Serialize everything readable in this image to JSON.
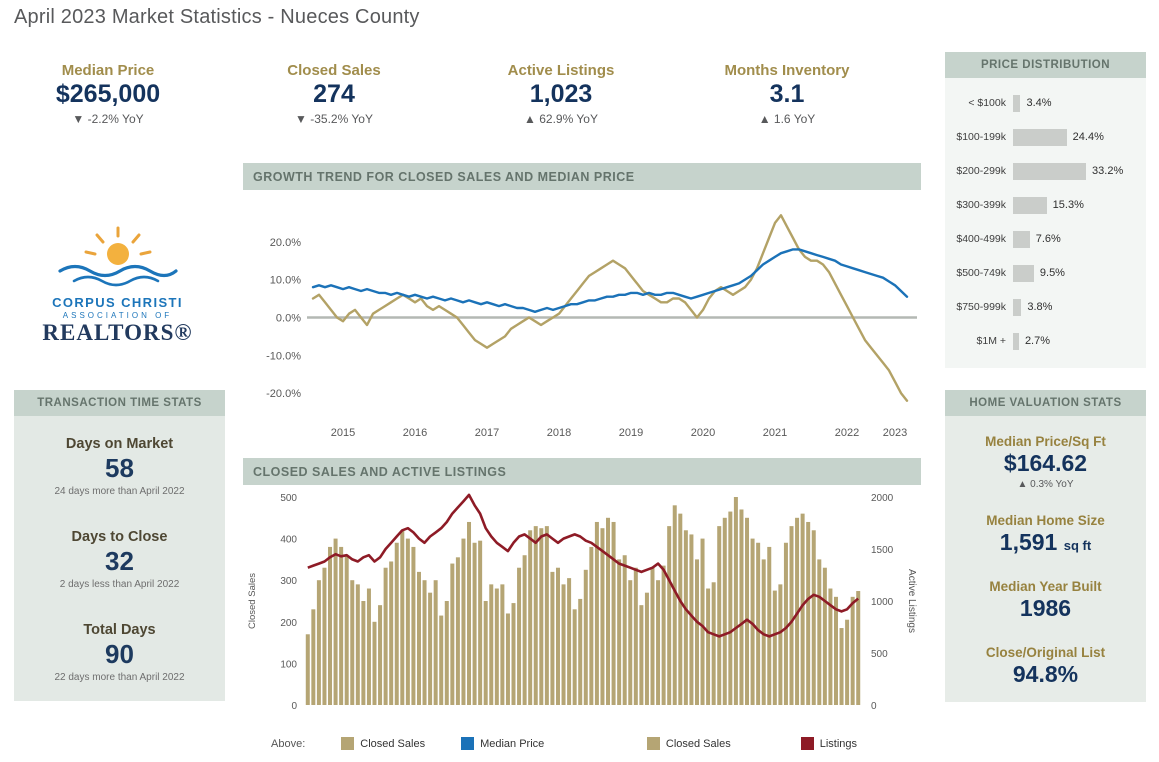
{
  "page": {
    "title": "April 2023 Market Statistics - Nueces County"
  },
  "kpis": [
    {
      "label": "Median Price",
      "value": "$265,000",
      "delta": "▼  -2.2% YoY",
      "direction": "down"
    },
    {
      "label": "Closed Sales",
      "value": "274",
      "delta": "▼  -35.2% YoY",
      "direction": "down"
    },
    {
      "label": "Active Listings",
      "value": "1,023",
      "delta": "▲  62.9% YoY",
      "direction": "up"
    },
    {
      "label": "Months Inventory",
      "value": "3.1",
      "delta": "▲  1.6 YoY",
      "direction": "up"
    }
  ],
  "logo": {
    "line1": "CORPUS CHRISTI",
    "line2": "ASSOCIATION OF",
    "line3": "REALTORS®"
  },
  "panels": {
    "transaction": {
      "header": "TRANSACTION TIME STATS",
      "stats": [
        {
          "label": "Days on Market",
          "value": "58",
          "note": "24 days more than April 2022"
        },
        {
          "label": "Days to Close",
          "value": "32",
          "note": "2 days less than April 2022"
        },
        {
          "label": "Total Days",
          "value": "90",
          "note": "22 days more than April 2022"
        }
      ]
    },
    "price_distribution": {
      "header": "PRICE DISTRIBUTION"
    },
    "valuation": {
      "header": "HOME VALUATION STATS",
      "stats": [
        {
          "label": "Median Price/Sq Ft",
          "value": "$164.62",
          "note": "▲  0.3% YoY"
        },
        {
          "label": "Median Home Size",
          "value": "1,591",
          "suffix": "sq ft"
        },
        {
          "label": "Median Year Built",
          "value": "1986"
        },
        {
          "label": "Close/Original List",
          "value": "94.8%"
        }
      ]
    }
  },
  "section_headers": {
    "growth": "GROWTH TREND FOR CLOSED SALES AND MEDIAN PRICE",
    "sales": "CLOSED SALES AND ACTIVE LISTINGS"
  },
  "legend": {
    "above_label": "Above:",
    "items": [
      {
        "label": "Closed Sales",
        "color": "#b5a574"
      },
      {
        "label": "Median Price",
        "color": "#1b72b8"
      },
      {
        "label": "Closed Sales",
        "color": "#b5a574"
      },
      {
        "label": "Listings",
        "color": "#8e1b26"
      }
    ]
  },
  "chart_data": [
    {
      "type": "line",
      "title": "GROWTH TREND FOR CLOSED SALES AND MEDIAN PRICE",
      "x_unit": "month",
      "x_range": "Jan 2015 - Apr 2023",
      "x_labels": [
        "2015",
        "2016",
        "2017",
        "2018",
        "2019",
        "2020",
        "2021",
        "2022",
        "2023"
      ],
      "ylim": [
        -25,
        30
      ],
      "yticks": [
        -20,
        -10,
        0,
        10,
        20
      ],
      "ytick_format": "percent_one_decimal",
      "grid": "zero-line-only",
      "series": [
        {
          "name": "Closed Sales",
          "color": "#b3a266",
          "values": [
            5,
            6,
            4,
            2,
            0,
            -1,
            1,
            2,
            0,
            -2,
            1,
            2,
            3,
            4,
            5,
            6,
            5,
            4,
            5,
            3,
            2,
            3,
            2,
            1,
            0,
            -2,
            -4,
            -6,
            -7,
            -8,
            -7,
            -6,
            -5,
            -3,
            -2,
            -1,
            0,
            -1,
            -2,
            -1,
            0,
            1,
            3,
            5,
            7,
            9,
            11,
            12,
            13,
            14,
            15,
            14,
            13,
            11,
            9,
            7,
            6,
            5,
            4,
            4,
            5,
            5,
            4,
            2,
            0,
            2,
            5,
            7,
            8,
            7,
            6,
            7,
            8,
            10,
            13,
            17,
            21,
            25,
            27,
            24,
            21,
            18,
            16,
            15,
            15,
            14,
            12,
            9,
            6,
            3,
            0,
            -3,
            -6,
            -8,
            -10,
            -12,
            -14,
            -17,
            -20,
            -22
          ]
        },
        {
          "name": "Median Price",
          "color": "#1b72b8",
          "values": [
            8,
            8.5,
            8,
            8.5,
            8,
            7.5,
            8,
            7.5,
            7,
            7.5,
            7,
            6.5,
            6.5,
            6,
            6.5,
            6,
            5.5,
            6,
            5.5,
            5,
            5.5,
            5,
            4.5,
            5,
            4.5,
            4,
            4.5,
            4,
            3.5,
            4,
            3.5,
            3,
            3.5,
            3,
            2.5,
            2.5,
            2,
            1.5,
            2,
            2.5,
            2,
            2.5,
            3,
            3.5,
            3.5,
            4,
            4.5,
            4.5,
            5,
            5.5,
            5.5,
            6,
            6,
            6.5,
            6.5,
            6,
            6.5,
            6,
            6,
            6.5,
            6.5,
            6,
            5.5,
            5,
            5.5,
            6,
            6.5,
            7,
            7.5,
            8,
            8.5,
            9,
            10,
            11,
            12.5,
            14,
            15,
            16,
            17,
            17.5,
            18,
            18,
            17.5,
            17,
            16.5,
            16,
            15.5,
            15,
            14,
            13.5,
            13,
            12.5,
            12,
            11.5,
            11,
            10.5,
            9.5,
            8.5,
            7,
            5.5
          ]
        }
      ]
    },
    {
      "type": "bar+line",
      "title": "CLOSED SALES AND ACTIVE LISTINGS",
      "x_unit": "month",
      "x_range": "Jan 2015 - Apr 2023",
      "left_axis": {
        "label": "Closed Sales",
        "lim": [
          0,
          500
        ],
        "ticks": [
          0,
          100,
          200,
          300,
          400,
          500
        ]
      },
      "right_axis": {
        "label": "Active Listings",
        "lim": [
          0,
          2000
        ],
        "ticks": [
          0,
          500,
          1000,
          1500,
          2000
        ]
      },
      "bars": {
        "name": "Closed Sales",
        "axis": "left",
        "color": "#b5a574",
        "values": [
          170,
          230,
          300,
          330,
          380,
          400,
          380,
          360,
          300,
          290,
          250,
          280,
          200,
          240,
          330,
          345,
          390,
          420,
          400,
          380,
          320,
          300,
          270,
          300,
          215,
          250,
          340,
          355,
          400,
          440,
          390,
          395,
          250,
          290,
          280,
          290,
          220,
          245,
          330,
          360,
          420,
          430,
          425,
          430,
          320,
          330,
          290,
          305,
          230,
          255,
          325,
          380,
          440,
          425,
          450,
          440,
          350,
          360,
          300,
          330,
          240,
          270,
          330,
          300,
          335,
          430,
          480,
          460,
          420,
          410,
          350,
          400,
          280,
          295,
          430,
          450,
          465,
          500,
          470,
          450,
          400,
          390,
          350,
          380,
          275,
          290,
          390,
          430,
          450,
          460,
          440,
          420,
          350,
          330,
          280,
          260,
          185,
          205,
          260,
          274
        ]
      },
      "line": {
        "name": "Listings",
        "axis": "right",
        "color": "#8e1b26",
        "values": [
          1320,
          1340,
          1360,
          1380,
          1420,
          1450,
          1430,
          1440,
          1400,
          1380,
          1420,
          1440,
          1380,
          1420,
          1500,
          1560,
          1620,
          1680,
          1700,
          1660,
          1600,
          1560,
          1620,
          1660,
          1700,
          1760,
          1840,
          1900,
          1960,
          2020,
          1920,
          1840,
          1700,
          1620,
          1560,
          1520,
          1480,
          1560,
          1620,
          1640,
          1600,
          1560,
          1620,
          1640,
          1600,
          1560,
          1600,
          1620,
          1640,
          1620,
          1580,
          1560,
          1520,
          1480,
          1440,
          1400,
          1360,
          1340,
          1320,
          1300,
          1280,
          1300,
          1320,
          1360,
          1300,
          1200,
          1100,
          1000,
          920,
          860,
          800,
          760,
          700,
          680,
          660,
          680,
          700,
          740,
          780,
          820,
          780,
          720,
          680,
          660,
          680,
          700,
          740,
          800,
          880,
          960,
          1020,
          1060,
          1040,
          1000,
          960,
          920,
          900,
          920,
          980,
          1023
        ]
      }
    },
    {
      "type": "bar",
      "title": "PRICE DISTRIBUTION",
      "orientation": "horizontal",
      "unit": "%",
      "categories": [
        "< $100k",
        "$100-199k",
        "$200-299k",
        "$300-399k",
        "$400-499k",
        "$500-749k",
        "$750-999k",
        "$1M +"
      ],
      "values": [
        3.4,
        24.4,
        33.2,
        15.3,
        7.6,
        9.5,
        3.8,
        2.7
      ]
    }
  ]
}
